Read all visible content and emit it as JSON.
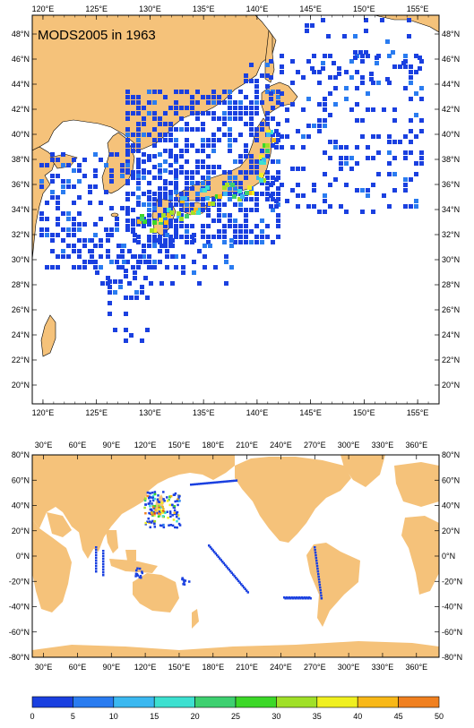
{
  "top_map": {
    "title": "MODS2005 in 1963",
    "lon_labels": [
      "120°E",
      "125°E",
      "130°E",
      "135°E",
      "140°E",
      "145°E",
      "150°E",
      "155°E"
    ],
    "lat_labels": [
      "48°N",
      "46°N",
      "44°N",
      "42°N",
      "40°N",
      "38°N",
      "36°N",
      "34°N",
      "32°N",
      "30°N",
      "28°N",
      "26°N",
      "24°N",
      "22°N",
      "20°N"
    ],
    "extent": {
      "lon": [
        119,
        157
      ],
      "lat": [
        18.5,
        49.5
      ]
    }
  },
  "bottom_map": {
    "lon_labels": [
      "30°E",
      "60°E",
      "90°E",
      "120°E",
      "150°E",
      "180°E",
      "210°E",
      "240°E",
      "270°E",
      "300°E",
      "330°E",
      "360°E"
    ],
    "lat_labels": [
      "80°N",
      "60°N",
      "40°N",
      "20°N",
      "0°N",
      "-20°N",
      "-40°N",
      "-60°N",
      "-80°N"
    ],
    "extent": {
      "lon": [
        20,
        380
      ],
      "lat": [
        -80,
        80
      ]
    }
  },
  "colorbar": {
    "labels": [
      "0",
      "5",
      "10",
      "15",
      "20",
      "25",
      "30",
      "35",
      "40",
      "45",
      "50"
    ],
    "colors": [
      "#1a40e0",
      "#2a7cf0",
      "#3bb8f0",
      "#3de0d0",
      "#3ed070",
      "#3cd828",
      "#a0e028",
      "#f0f020",
      "#f8b818",
      "#f08020",
      "#e03818"
    ]
  },
  "colors": {
    "land": "#f5c27a",
    "ocean": "#ffffff",
    "data_low": "#1a40e0"
  }
}
